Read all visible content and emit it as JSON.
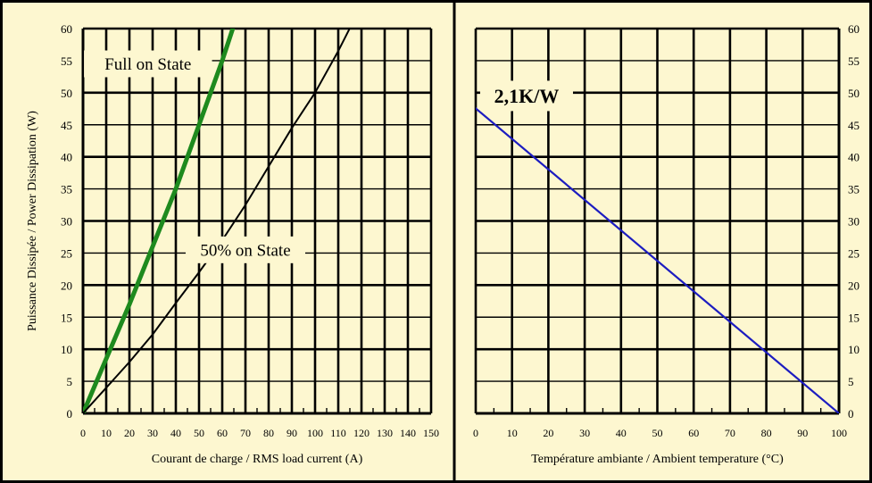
{
  "figure": {
    "background": "#fdf7d0",
    "border": "#000000"
  },
  "chart_data": [
    {
      "type": "line",
      "xlabel": "Courant de charge / RMS load current (A)",
      "ylabel": "Puissance Dissipée / Power Dissipation (W)",
      "x_ticks": [
        "0",
        "10",
        "20",
        "30",
        "40",
        "50",
        "60",
        "70",
        "80",
        "90",
        "100",
        "110",
        "120",
        "130",
        "140",
        "150"
      ],
      "y_ticks": [
        "0",
        "5",
        "10",
        "15",
        "20",
        "25",
        "30",
        "35",
        "40",
        "45",
        "50",
        "55",
        "60"
      ],
      "xlim": [
        0,
        150
      ],
      "ylim": [
        0,
        60
      ],
      "grid": true,
      "annotations": [
        {
          "text": "Full on State",
          "x": 28,
          "y": 54.5
        },
        {
          "text": "50% on State",
          "x": 70,
          "y": 25.5
        }
      ],
      "series": [
        {
          "name": "Full on State",
          "color": "#1e8a1e",
          "x": [
            0,
            10,
            20,
            30,
            40,
            50,
            60,
            65
          ],
          "y": [
            0,
            8.5,
            17,
            26,
            35,
            45,
            55,
            60.5
          ]
        },
        {
          "name": "50% on State",
          "color": "#000000",
          "x": [
            0,
            10,
            20,
            30,
            40,
            50,
            60,
            70,
            80,
            90,
            100,
            110,
            117
          ],
          "y": [
            0,
            4,
            8,
            12.3,
            17.2,
            22,
            27,
            32.5,
            38.5,
            44.5,
            50,
            56.5,
            61.5
          ]
        }
      ]
    },
    {
      "type": "line",
      "xlabel": "Température ambiante / Ambient temperature (°C)",
      "x_ticks": [
        "0",
        "10",
        "20",
        "30",
        "40",
        "50",
        "60",
        "70",
        "80",
        "90",
        "100"
      ],
      "y_ticks": [
        "0",
        "5",
        "10",
        "15",
        "20",
        "25",
        "30",
        "35",
        "40",
        "45",
        "50",
        "55",
        "60"
      ],
      "xlim": [
        0,
        100
      ],
      "ylim": [
        0,
        60
      ],
      "grid": true,
      "annotations": [
        {
          "text": "2,1K/W",
          "x": 14,
          "y": 49.5,
          "color": "#1c1cc0"
        }
      ],
      "series": [
        {
          "name": "2,1K/W",
          "color": "#1c1cc0",
          "x": [
            -2,
            100
          ],
          "y": [
            48.5,
            0
          ]
        }
      ]
    }
  ]
}
